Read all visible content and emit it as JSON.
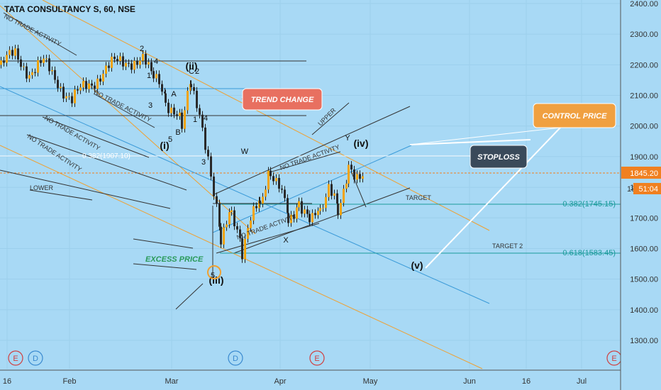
{
  "header": {
    "title": "TATA CONSULTANCY S, 60, NSE"
  },
  "colors": {
    "background": "#a8d9f5",
    "candle": "#f0a30a",
    "wick": "#222222",
    "orange_line": "#f0a030",
    "blue_line": "#3a9ad8",
    "teal_line": "#1a9a9a",
    "trend_box": "#e87060",
    "control_box": "#f0a040",
    "stoploss_box": "#3a4a5a"
  },
  "chart_data": {
    "type": "candlestick",
    "title": "TATA CONSULTANCY S, 60, NSE",
    "ylim": [
      1200,
      2420
    ],
    "y_ticks": [
      "2400.00",
      "2300.00",
      "2200.00",
      "2100.00",
      "2000.00",
      "1900.00",
      "1800.00",
      "1700.00",
      "1600.00",
      "1500.00",
      "1400.00",
      "1300.00"
    ],
    "y_ticks_values": [
      2400,
      2300,
      2200,
      2100,
      2000,
      1900,
      1800,
      1700,
      1600,
      1500,
      1400,
      1300
    ],
    "x_ticks": [
      "16",
      "Feb",
      "Mar",
      "Apr",
      "May",
      "Jun",
      "16",
      "Jul"
    ],
    "price_label": "1845.20",
    "countdown_label": "51:04",
    "price_partial": "18",
    "fib_levels": [
      {
        "label": "0.382(1907.10)",
        "value": 1907.1
      },
      {
        "label": "0.382(1745.15)",
        "value": 1745.15
      },
      {
        "label": "0.618(1583.45)",
        "value": 1583.45
      }
    ],
    "wave_labels": [
      "2",
      "4",
      "(ii)",
      "C",
      "2",
      "1",
      "A",
      "3",
      "B",
      "5",
      "(i)",
      "3",
      "1",
      "4",
      "W",
      "Y",
      "(iv)",
      "X",
      "(v)",
      "5",
      "(iii)"
    ],
    "annotations": [
      "NO TRADE ACTIVITY",
      "NO TRADE ACTIVITY",
      "NO TRADE ACTIVITY",
      "NO TRADE ACTIVITY",
      "NO TRADE ACTIVITY",
      "NO TRADE ACTIVITY",
      "LOWER",
      "UPPER",
      "EXCESS PRICE",
      "TARGET",
      "TARGET 2"
    ],
    "callouts": {
      "trend_change": "TREND CHANGE",
      "control_price": "CONTROL PRICE",
      "stoploss": "STOPLOSS"
    },
    "event_markers": [
      "E",
      "D",
      "D",
      "E",
      "E"
    ]
  }
}
